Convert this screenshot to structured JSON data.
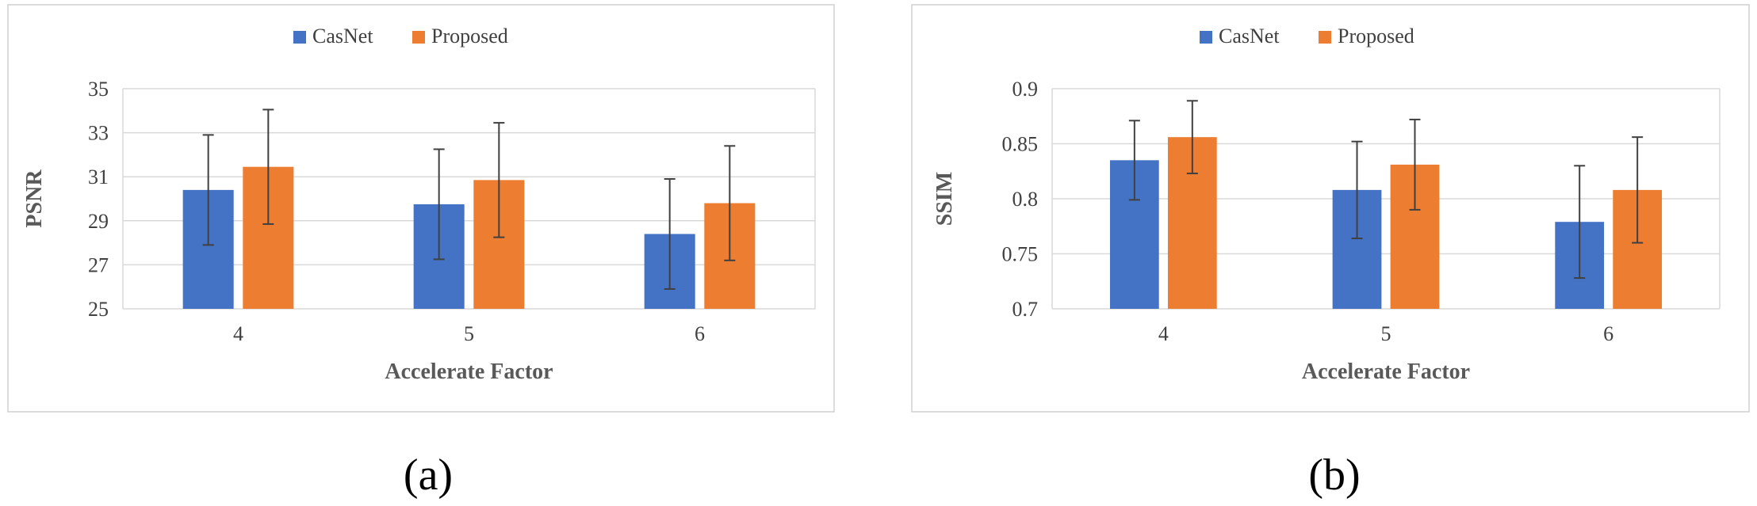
{
  "colors": {
    "casnet": "#4472c4",
    "proposed": "#ed7d31",
    "grid": "#d9d9d9",
    "frame": "#d0d0d0",
    "error": "#404040"
  },
  "chart_data": [
    {
      "type": "bar",
      "caption": "(a)",
      "xlabel": "Accelerate Factor",
      "ylabel": "PSNR",
      "categories": [
        "4",
        "5",
        "6"
      ],
      "ylim": [
        25,
        35
      ],
      "yticks": [
        25,
        27,
        29,
        31,
        33,
        35
      ],
      "legend": "top-center",
      "grid": true,
      "series": [
        {
          "name": "CasNet",
          "values": [
            30.4,
            29.75,
            28.4
          ],
          "errors": [
            2.5,
            2.5,
            2.5
          ]
        },
        {
          "name": "Proposed",
          "values": [
            31.45,
            30.85,
            29.8
          ],
          "errors": [
            2.6,
            2.6,
            2.6
          ]
        }
      ]
    },
    {
      "type": "bar",
      "caption": "(b)",
      "xlabel": "Accelerate Factor",
      "ylabel": "SSIM",
      "categories": [
        "4",
        "5",
        "6"
      ],
      "ylim": [
        0.7,
        0.9
      ],
      "yticks": [
        0.7,
        0.75,
        0.8,
        0.85,
        0.9
      ],
      "legend": "top-center",
      "grid": true,
      "series": [
        {
          "name": "CasNet",
          "values": [
            0.835,
            0.808,
            0.779
          ],
          "errors": [
            0.036,
            0.044,
            0.051
          ]
        },
        {
          "name": "Proposed",
          "values": [
            0.856,
            0.831,
            0.808
          ],
          "errors": [
            0.033,
            0.041,
            0.048
          ]
        }
      ]
    }
  ]
}
